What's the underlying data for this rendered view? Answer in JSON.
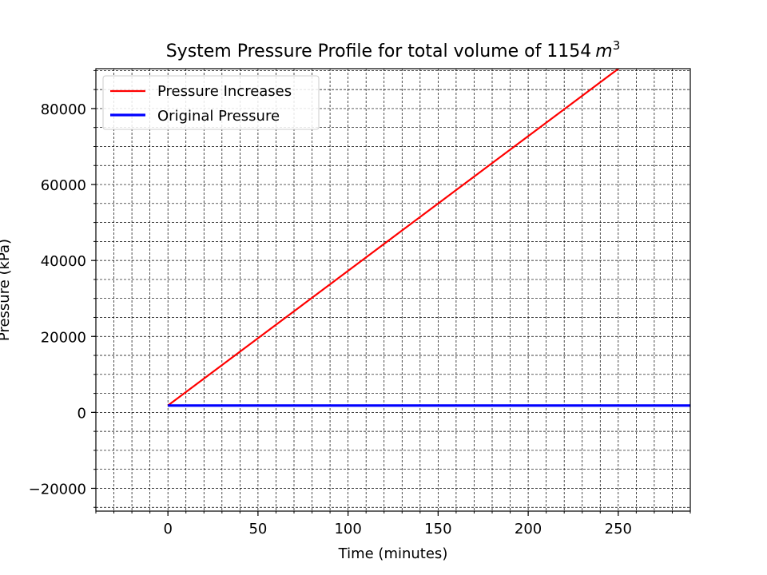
{
  "chart_data": {
    "type": "line",
    "title": "System Pressure Profile for total volume of 1154",
    "title_math": "m",
    "title_sup": "3",
    "xlabel": "Time (minutes)",
    "ylabel": "Pressure (kPa)",
    "xlim": [
      -40,
      290
    ],
    "ylim": [
      -26000,
      90500
    ],
    "xticks": [
      0,
      50,
      100,
      150,
      200,
      250
    ],
    "yticks": [
      -20000,
      0,
      20000,
      40000,
      60000,
      80000
    ],
    "xtick_labels": [
      "0",
      "50",
      "100",
      "150",
      "200",
      "250"
    ],
    "ytick_labels": [
      "−20000",
      "0",
      "20000",
      "40000",
      "60000",
      "80000"
    ],
    "x_minor_step": 10,
    "y_minor_step": 5000,
    "grid": true,
    "grid_style": "dashed, major and minor",
    "legend_position": "top-left",
    "series": [
      {
        "name": "Pressure Increases",
        "color": "#ff0000",
        "x": [
          0,
          260
        ],
        "y": [
          1800,
          94000
        ]
      },
      {
        "name": "Original Pressure",
        "color": "#0000ff",
        "x": [
          0,
          290
        ],
        "y": [
          1800,
          1800
        ]
      }
    ]
  }
}
